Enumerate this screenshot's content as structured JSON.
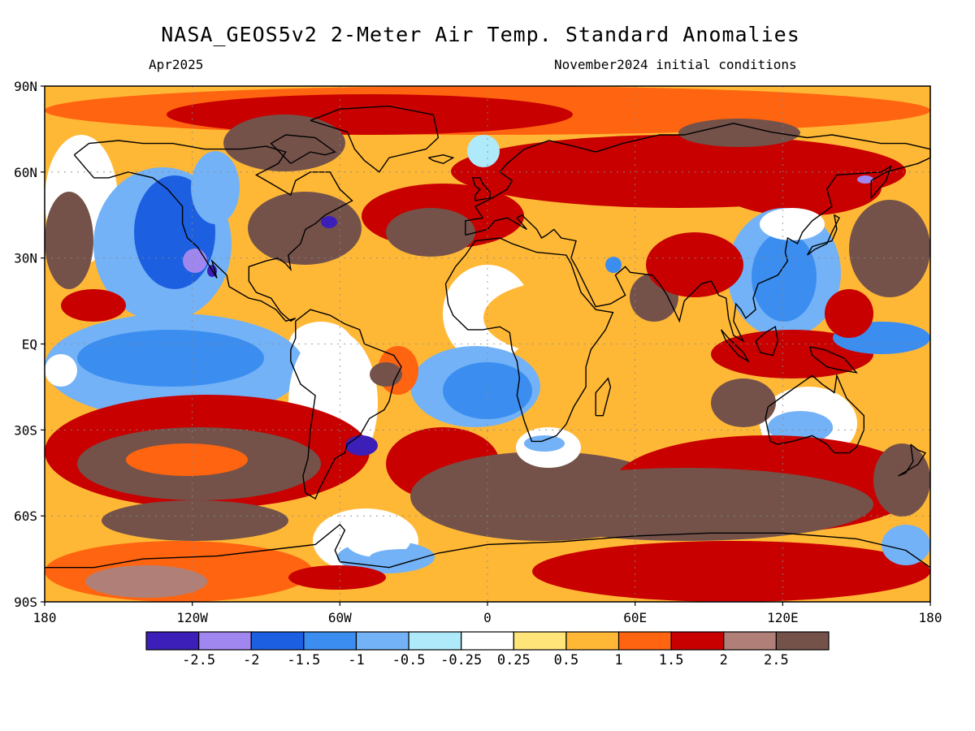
{
  "header": {
    "title": "NASA_GEOS5v2 2-Meter Air Temp. Standard Anomalies",
    "valid_month": "Apr2025",
    "init_conditions": "November2024 initial conditions"
  },
  "map": {
    "projection": "cylindrical equidistant, global",
    "lon_range": [
      -180,
      180
    ],
    "lat_range": [
      -90,
      90
    ],
    "lat_labels": [
      "90N",
      "60N",
      "30N",
      "EQ",
      "30S",
      "60S",
      "90S"
    ],
    "lon_labels": [
      "180",
      "120W",
      "60W",
      "0",
      "60E",
      "120E",
      "180"
    ],
    "variable": "2-meter air temperature standard anomaly"
  },
  "legend": {
    "levels": [
      "-2.5",
      "-2",
      "-1.5",
      "-1",
      "-0.5",
      "-0.25",
      "0.25",
      "0.5",
      "1",
      "1.5",
      "2",
      "2.5"
    ],
    "colors": [
      "#3b1fb8",
      "#a087f0",
      "#1c5fe0",
      "#3b8ef0",
      "#73b2f7",
      "#aeeaf9",
      "#ffffff",
      "#ffe47a",
      "#ffb836",
      "#ff6410",
      "#c80000",
      "#b08078",
      "#74524a"
    ]
  }
}
